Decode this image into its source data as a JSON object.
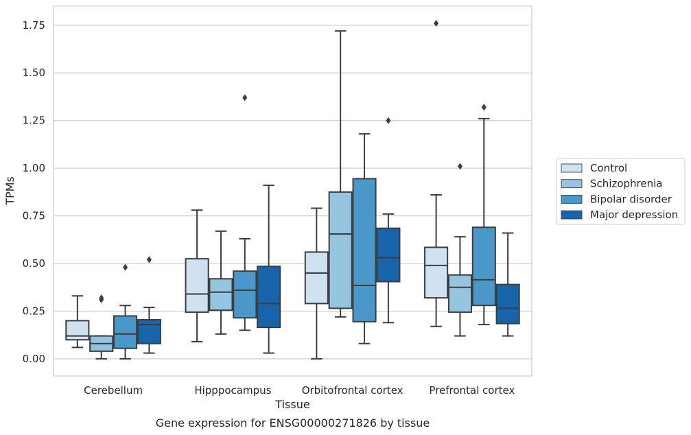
{
  "chart_data": {
    "type": "box",
    "title": "",
    "caption": "Gene expression for ENSG00000271826 by tissue",
    "xlabel": "Tissue",
    "ylabel": "TPMs",
    "ylim": [
      -0.09,
      1.85
    ],
    "yticks": [
      0.0,
      0.25,
      0.5,
      0.75,
      1.0,
      1.25,
      1.5,
      1.75
    ],
    "ytick_labels": [
      "0.00",
      "0.25",
      "0.50",
      "0.75",
      "1.00",
      "1.25",
      "1.50",
      "1.75"
    ],
    "grid": "horizontal",
    "legend_position": "right",
    "categories": [
      "Cerebellum",
      "Hipppocampus",
      "Orbitofrontal cortex",
      "Prefrontal cortex"
    ],
    "series": [
      {
        "name": "Control",
        "color": "#d0e1f2",
        "boxes": [
          {
            "whislo": 0.06,
            "q1": 0.1,
            "med": 0.12,
            "q3": 0.2,
            "whishi": 0.33,
            "fliers": []
          },
          {
            "whislo": 0.09,
            "q1": 0.245,
            "med": 0.34,
            "q3": 0.525,
            "whishi": 0.78,
            "fliers": []
          },
          {
            "whislo": 0.0,
            "q1": 0.29,
            "med": 0.45,
            "q3": 0.56,
            "whishi": 0.79,
            "fliers": []
          },
          {
            "whislo": 0.17,
            "q1": 0.32,
            "med": 0.49,
            "q3": 0.585,
            "whishi": 0.86,
            "fliers": [
              1.76
            ]
          }
        ]
      },
      {
        "name": "Schizophrenia",
        "color": "#94c4df",
        "boxes": [
          {
            "whislo": 0.0,
            "q1": 0.04,
            "med": 0.08,
            "q3": 0.12,
            "whishi": 0.12,
            "fliers": [
              0.31,
              0.32
            ]
          },
          {
            "whislo": 0.13,
            "q1": 0.255,
            "med": 0.35,
            "q3": 0.42,
            "whishi": 0.67,
            "fliers": []
          },
          {
            "whislo": 0.22,
            "q1": 0.265,
            "med": 0.655,
            "q3": 0.875,
            "whishi": 1.72,
            "fliers": []
          },
          {
            "whislo": 0.12,
            "q1": 0.245,
            "med": 0.375,
            "q3": 0.44,
            "whishi": 0.64,
            "fliers": [
              1.01
            ]
          }
        ]
      },
      {
        "name": "Bipolar disorder",
        "color": "#4a98c9",
        "boxes": [
          {
            "whislo": 0.0,
            "q1": 0.055,
            "med": 0.13,
            "q3": 0.225,
            "whishi": 0.28,
            "fliers": [
              0.48
            ]
          },
          {
            "whislo": 0.15,
            "q1": 0.215,
            "med": 0.36,
            "q3": 0.46,
            "whishi": 0.63,
            "fliers": [
              1.37
            ]
          },
          {
            "whislo": 0.08,
            "q1": 0.195,
            "med": 0.385,
            "q3": 0.945,
            "whishi": 1.18,
            "fliers": []
          },
          {
            "whislo": 0.18,
            "q1": 0.28,
            "med": 0.415,
            "q3": 0.69,
            "whishi": 1.26,
            "fliers": [
              1.32
            ]
          }
        ]
      },
      {
        "name": "Major depression",
        "color": "#1764ab",
        "boxes": [
          {
            "whislo": 0.03,
            "q1": 0.08,
            "med": 0.18,
            "q3": 0.205,
            "whishi": 0.27,
            "fliers": [
              0.52
            ]
          },
          {
            "whislo": 0.03,
            "q1": 0.165,
            "med": 0.29,
            "q3": 0.485,
            "whishi": 0.91,
            "fliers": []
          },
          {
            "whislo": 0.19,
            "q1": 0.405,
            "med": 0.53,
            "q3": 0.685,
            "whishi": 0.76,
            "fliers": [
              1.25
            ]
          },
          {
            "whislo": 0.12,
            "q1": 0.185,
            "med": 0.265,
            "q3": 0.39,
            "whishi": 0.66,
            "fliers": []
          }
        ]
      }
    ]
  }
}
